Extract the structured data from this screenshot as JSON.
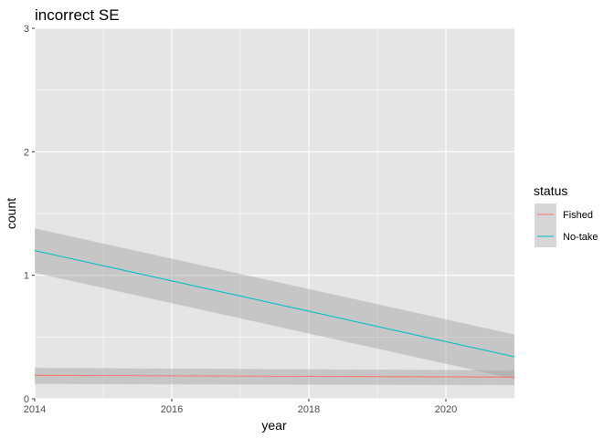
{
  "chart_data": {
    "type": "line",
    "title": "incorrect SE",
    "xlabel": "year",
    "ylabel": "count",
    "xlim": [
      2014,
      2021
    ],
    "ylim": [
      0,
      3
    ],
    "x_ticks": [
      2014,
      2016,
      2018,
      2020
    ],
    "y_ticks": [
      0,
      1,
      2,
      3
    ],
    "x_tick_labels": [
      "2014",
      "2016",
      "2018",
      "2020"
    ],
    "y_tick_labels": [
      "0",
      "1",
      "2",
      "3"
    ],
    "grid": true,
    "legend": {
      "title": "status",
      "position": "right"
    },
    "series": [
      {
        "name": "Fished",
        "color": "#F8766D",
        "x": [
          2014,
          2021
        ],
        "y": [
          0.19,
          0.175
        ],
        "ci_lower": [
          0.12,
          0.11
        ],
        "ci_upper": [
          0.25,
          0.23
        ]
      },
      {
        "name": "No-take",
        "color": "#00BFC4",
        "x": [
          2014,
          2021
        ],
        "y": [
          1.2,
          0.34
        ],
        "ci_lower": [
          1.02,
          0.16
        ],
        "ci_upper": [
          1.38,
          0.52
        ]
      }
    ],
    "panel_background": "#E5E5E5",
    "gridline_color": "#FFFFFF",
    "ribbon_color": "#999999"
  }
}
